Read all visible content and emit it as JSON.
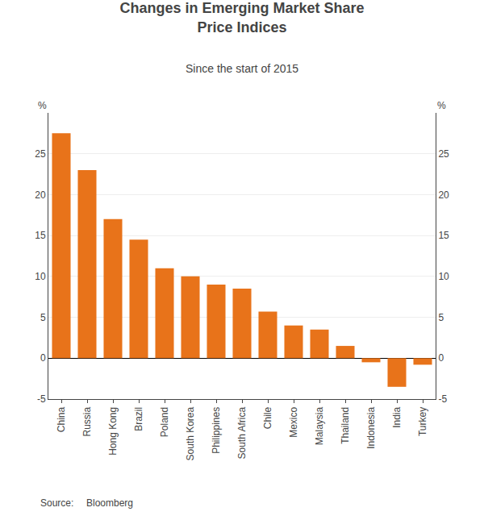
{
  "chart_data": {
    "type": "bar",
    "title": "Changes in Emerging Market Share\nPrice Indices",
    "subtitle": "Since the start of 2015",
    "annotations": [
      "Source:",
      "Bloomberg"
    ],
    "categories": [
      "China",
      "Russia",
      "Hong Kong",
      "Brazil",
      "Poland",
      "South Korea",
      "Philippines",
      "South Africa",
      "Chile",
      "Mexico",
      "Malaysia",
      "Thailand",
      "Indonesia",
      "India",
      "Turkey"
    ],
    "values": [
      27.5,
      23.0,
      17.0,
      14.5,
      11.0,
      10.0,
      9.0,
      8.5,
      5.7,
      4.0,
      3.5,
      1.5,
      -0.5,
      -3.5,
      -0.8
    ],
    "color": "#E8731A",
    "ylabel": "%",
    "y2label": "%",
    "ylim": [
      -5,
      30
    ],
    "yticks": [
      -5,
      0,
      5,
      10,
      15,
      20,
      25
    ],
    "y2lim": [
      -5,
      30
    ],
    "y2ticks": [
      -5,
      0,
      5,
      10,
      15,
      20,
      25
    ],
    "grid": true
  }
}
